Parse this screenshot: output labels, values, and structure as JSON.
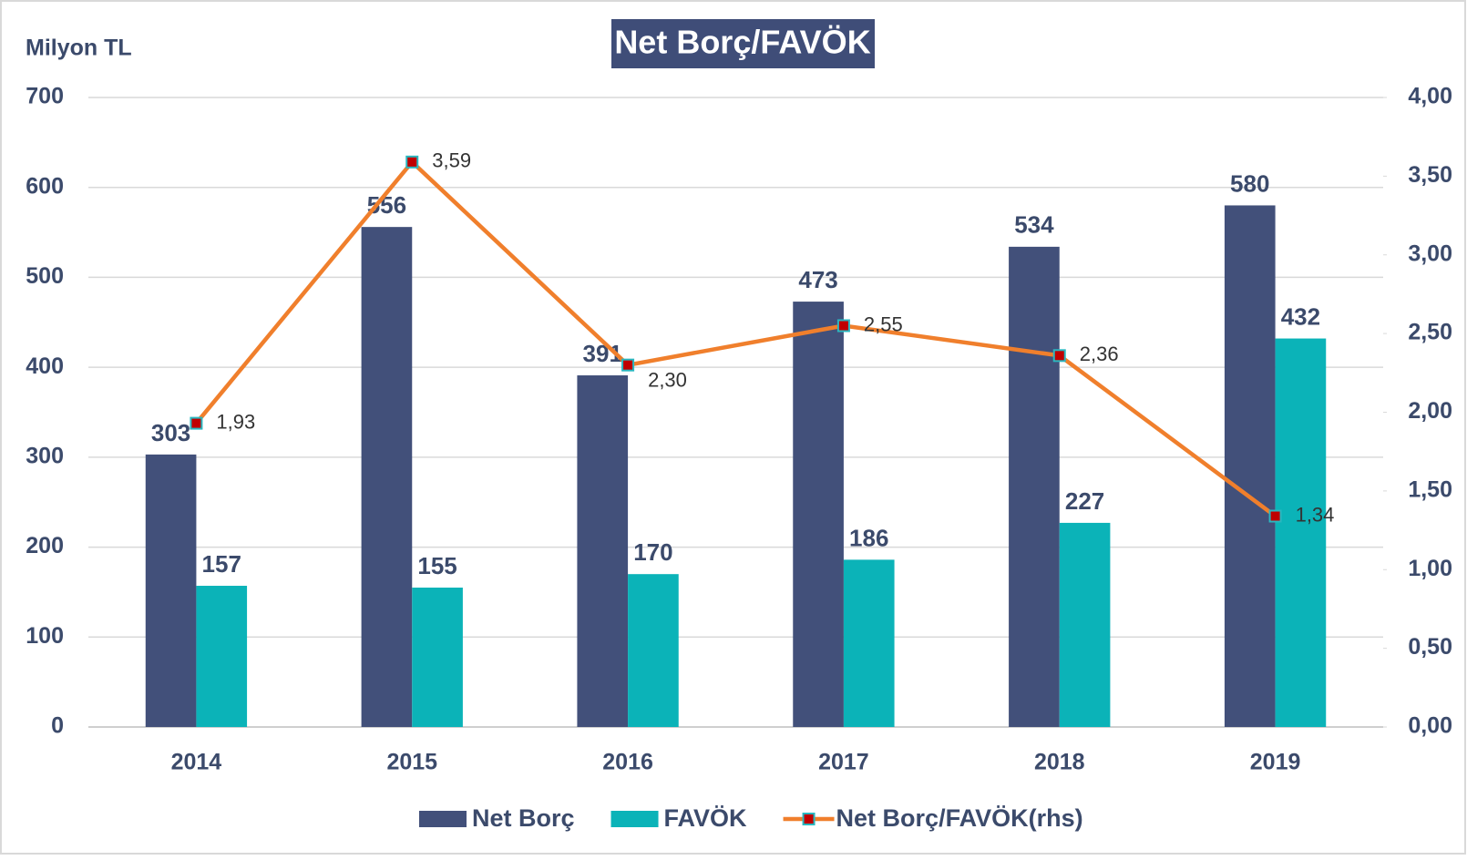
{
  "chart_data": {
    "type": "bar",
    "title": "Net Borç/FAVÖK",
    "y_label": "Milyon TL",
    "categories": [
      "2014",
      "2015",
      "2016",
      "2017",
      "2018",
      "2019"
    ],
    "series": [
      {
        "name": "Net Borç",
        "color": "#42507a",
        "values": [
          303,
          556,
          391,
          473,
          534,
          580
        ]
      },
      {
        "name": "FAVÖK",
        "color": "#0bb3b8",
        "values": [
          157,
          155,
          170,
          186,
          227,
          432
        ]
      },
      {
        "name": "Net Borç/FAVÖK(rhs)",
        "type": "line",
        "axis": "y2",
        "color": "#f07f2c",
        "marker_color": "#c00000",
        "values": [
          1.93,
          3.59,
          2.3,
          2.55,
          2.36,
          1.34
        ],
        "value_labels": [
          "1,93",
          "3,59",
          "2,30",
          "2,55",
          "2,36",
          "1,34"
        ]
      }
    ],
    "ylim": [
      0,
      700
    ],
    "yticks": [
      0,
      100,
      200,
      300,
      400,
      500,
      600,
      700
    ],
    "y2lim": [
      0,
      4
    ],
    "y2ticks": [
      {
        "value": 0,
        "label": "0,00"
      },
      {
        "value": 0.5,
        "label": "0,50"
      },
      {
        "value": 1,
        "label": "1,00"
      },
      {
        "value": 1.5,
        "label": "1,50"
      },
      {
        "value": 2,
        "label": "2,00"
      },
      {
        "value": 2.5,
        "label": "2,50"
      },
      {
        "value": 3,
        "label": "3,00"
      },
      {
        "value": 3.5,
        "label": "3,50"
      },
      {
        "value": 4,
        "label": "4,00"
      }
    ],
    "grid": true,
    "legend": "bottom"
  }
}
